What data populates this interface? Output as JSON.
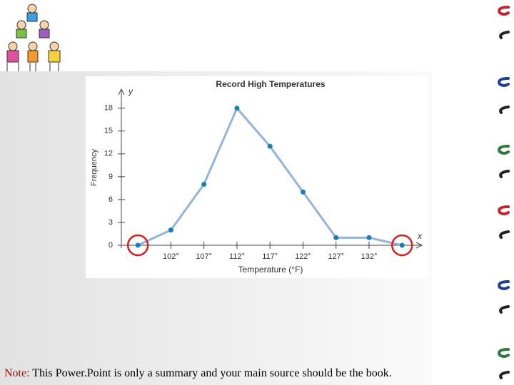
{
  "slide": {
    "note_label": "Note:",
    "note_text": "This Power.Point is only a summary and your main source should be the book."
  },
  "chart_data": {
    "type": "line",
    "title": "Record High Temperatures",
    "x_label": "Temperature (°F)",
    "y_label": "Frequency",
    "x_axis_letter": "x",
    "y_axis_letter": "y",
    "x": [
      97,
      102,
      107,
      112,
      117,
      122,
      127,
      132,
      137
    ],
    "values": [
      0,
      2,
      8,
      18,
      13,
      7,
      1,
      1,
      0
    ],
    "color": "#93b5dc",
    "marker_color": "#1a7fb5",
    "highlight_color": "#d81e1e",
    "xlim": [
      94.5,
      140
    ],
    "ylim": [
      0,
      20.5
    ],
    "xticks": [
      {
        "value": 102,
        "label": "102°"
      },
      {
        "value": 107,
        "label": "107°"
      },
      {
        "value": 112,
        "label": "112°"
      },
      {
        "value": 117,
        "label": "117°"
      },
      {
        "value": 122,
        "label": "122°"
      },
      {
        "value": 127,
        "label": "127°"
      },
      {
        "value": 132,
        "label": "132°"
      }
    ],
    "yticks": [
      0,
      3,
      6,
      9,
      12,
      15,
      18
    ],
    "grid": false
  }
}
